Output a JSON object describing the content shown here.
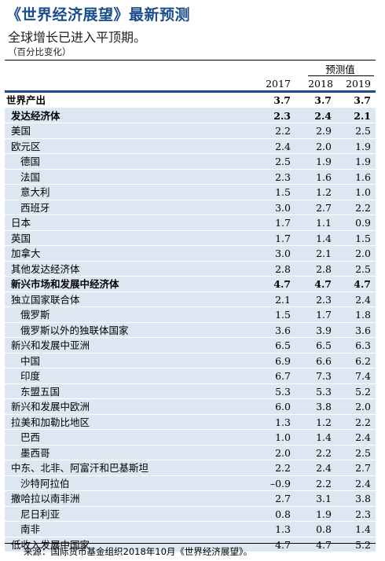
{
  "title": "《世界经济展望》最新预测",
  "subtitle": "全球增长已进入平顶期。",
  "unit": "（百分比变化）",
  "forecast_label": "预测值",
  "years": [
    "2017",
    "2018",
    "2019"
  ],
  "rows": [
    {
      "label": "世界产出",
      "indent": 0,
      "bold": true,
      "values": [
        "3.7",
        "3.7",
        "3.7"
      ]
    },
    {
      "label": "发达经济体",
      "indent": 1,
      "bold": true,
      "values": [
        "2.3",
        "2.4",
        "2.1"
      ]
    },
    {
      "label": "美国",
      "indent": 1,
      "bold": false,
      "values": [
        "2.2",
        "2.9",
        "2.5"
      ]
    },
    {
      "label": "欧元区",
      "indent": 1,
      "bold": false,
      "values": [
        "2.4",
        "2.0",
        "1.9"
      ]
    },
    {
      "label": "德国",
      "indent": 2,
      "bold": false,
      "values": [
        "2.5",
        "1.9",
        "1.9"
      ]
    },
    {
      "label": "法国",
      "indent": 2,
      "bold": false,
      "values": [
        "2.3",
        "1.6",
        "1.6"
      ]
    },
    {
      "label": "意大利",
      "indent": 2,
      "bold": false,
      "values": [
        "1.5",
        "1.2",
        "1.0"
      ]
    },
    {
      "label": "西班牙",
      "indent": 2,
      "bold": false,
      "values": [
        "3.0",
        "2.7",
        "2.2"
      ]
    },
    {
      "label": "日本",
      "indent": 1,
      "bold": false,
      "values": [
        "1.7",
        "1.1",
        "0.9"
      ]
    },
    {
      "label": "英国",
      "indent": 1,
      "bold": false,
      "values": [
        "1.7",
        "1.4",
        "1.5"
      ]
    },
    {
      "label": "加拿大",
      "indent": 1,
      "bold": false,
      "values": [
        "3.0",
        "2.1",
        "2.0"
      ]
    },
    {
      "label": "其他发达经济体",
      "indent": 1,
      "bold": false,
      "values": [
        "2.8",
        "2.8",
        "2.5"
      ]
    },
    {
      "label": "新兴市场和发展中经济体",
      "indent": 1,
      "bold": true,
      "values": [
        "4.7",
        "4.7",
        "4.7"
      ]
    },
    {
      "label": "独立国家联合体",
      "indent": 1,
      "bold": false,
      "values": [
        "2.1",
        "2.3",
        "2.4"
      ]
    },
    {
      "label": "俄罗斯",
      "indent": 2,
      "bold": false,
      "values": [
        "1.5",
        "1.7",
        "1.8"
      ]
    },
    {
      "label": "俄罗斯以外的独联体国家",
      "indent": 2,
      "bold": false,
      "values": [
        "3.6",
        "3.9",
        "3.6"
      ]
    },
    {
      "label": "新兴和发展中亚洲",
      "indent": 1,
      "bold": false,
      "values": [
        "6.5",
        "6.5",
        "6.3"
      ]
    },
    {
      "label": "中国",
      "indent": 2,
      "bold": false,
      "values": [
        "6.9",
        "6.6",
        "6.2"
      ]
    },
    {
      "label": "印度",
      "indent": 2,
      "bold": false,
      "values": [
        "6.7",
        "7.3",
        "7.4"
      ]
    },
    {
      "label": "东盟五国",
      "indent": 2,
      "bold": false,
      "values": [
        "5.3",
        "5.3",
        "5.2"
      ]
    },
    {
      "label": "新兴和发展中欧洲",
      "indent": 1,
      "bold": false,
      "values": [
        "6.0",
        "3.8",
        "2.0"
      ]
    },
    {
      "label": "拉美和加勒比地区",
      "indent": 1,
      "bold": false,
      "values": [
        "1.3",
        "1.2",
        "2.2"
      ]
    },
    {
      "label": "巴西",
      "indent": 2,
      "bold": false,
      "values": [
        "1.0",
        "1.4",
        "2.4"
      ]
    },
    {
      "label": "墨西哥",
      "indent": 2,
      "bold": false,
      "values": [
        "2.0",
        "2.2",
        "2.5"
      ]
    },
    {
      "label": "中东、北非、阿富汗和巴基斯坦",
      "indent": 1,
      "bold": false,
      "values": [
        "2.2",
        "2.4",
        "2.7"
      ]
    },
    {
      "label": "沙特阿拉伯",
      "indent": 2,
      "bold": false,
      "values": [
        "–0.9",
        "2.2",
        "2.4"
      ]
    },
    {
      "label": "撒哈拉以南非洲",
      "indent": 1,
      "bold": false,
      "values": [
        "2.7",
        "3.1",
        "3.8"
      ]
    },
    {
      "label": "尼日利亚",
      "indent": 2,
      "bold": false,
      "values": [
        "0.8",
        "1.9",
        "2.3"
      ]
    },
    {
      "label": "南非",
      "indent": 2,
      "bold": false,
      "values": [
        "1.3",
        "0.8",
        "1.4"
      ]
    },
    {
      "label": "低收入发展中国家",
      "indent": 1,
      "bold": false,
      "values": [
        "4.7",
        "4.7",
        "5.2"
      ]
    }
  ],
  "source": "来源：国际货币基金组织2018年10月《世界经济展望》。"
}
